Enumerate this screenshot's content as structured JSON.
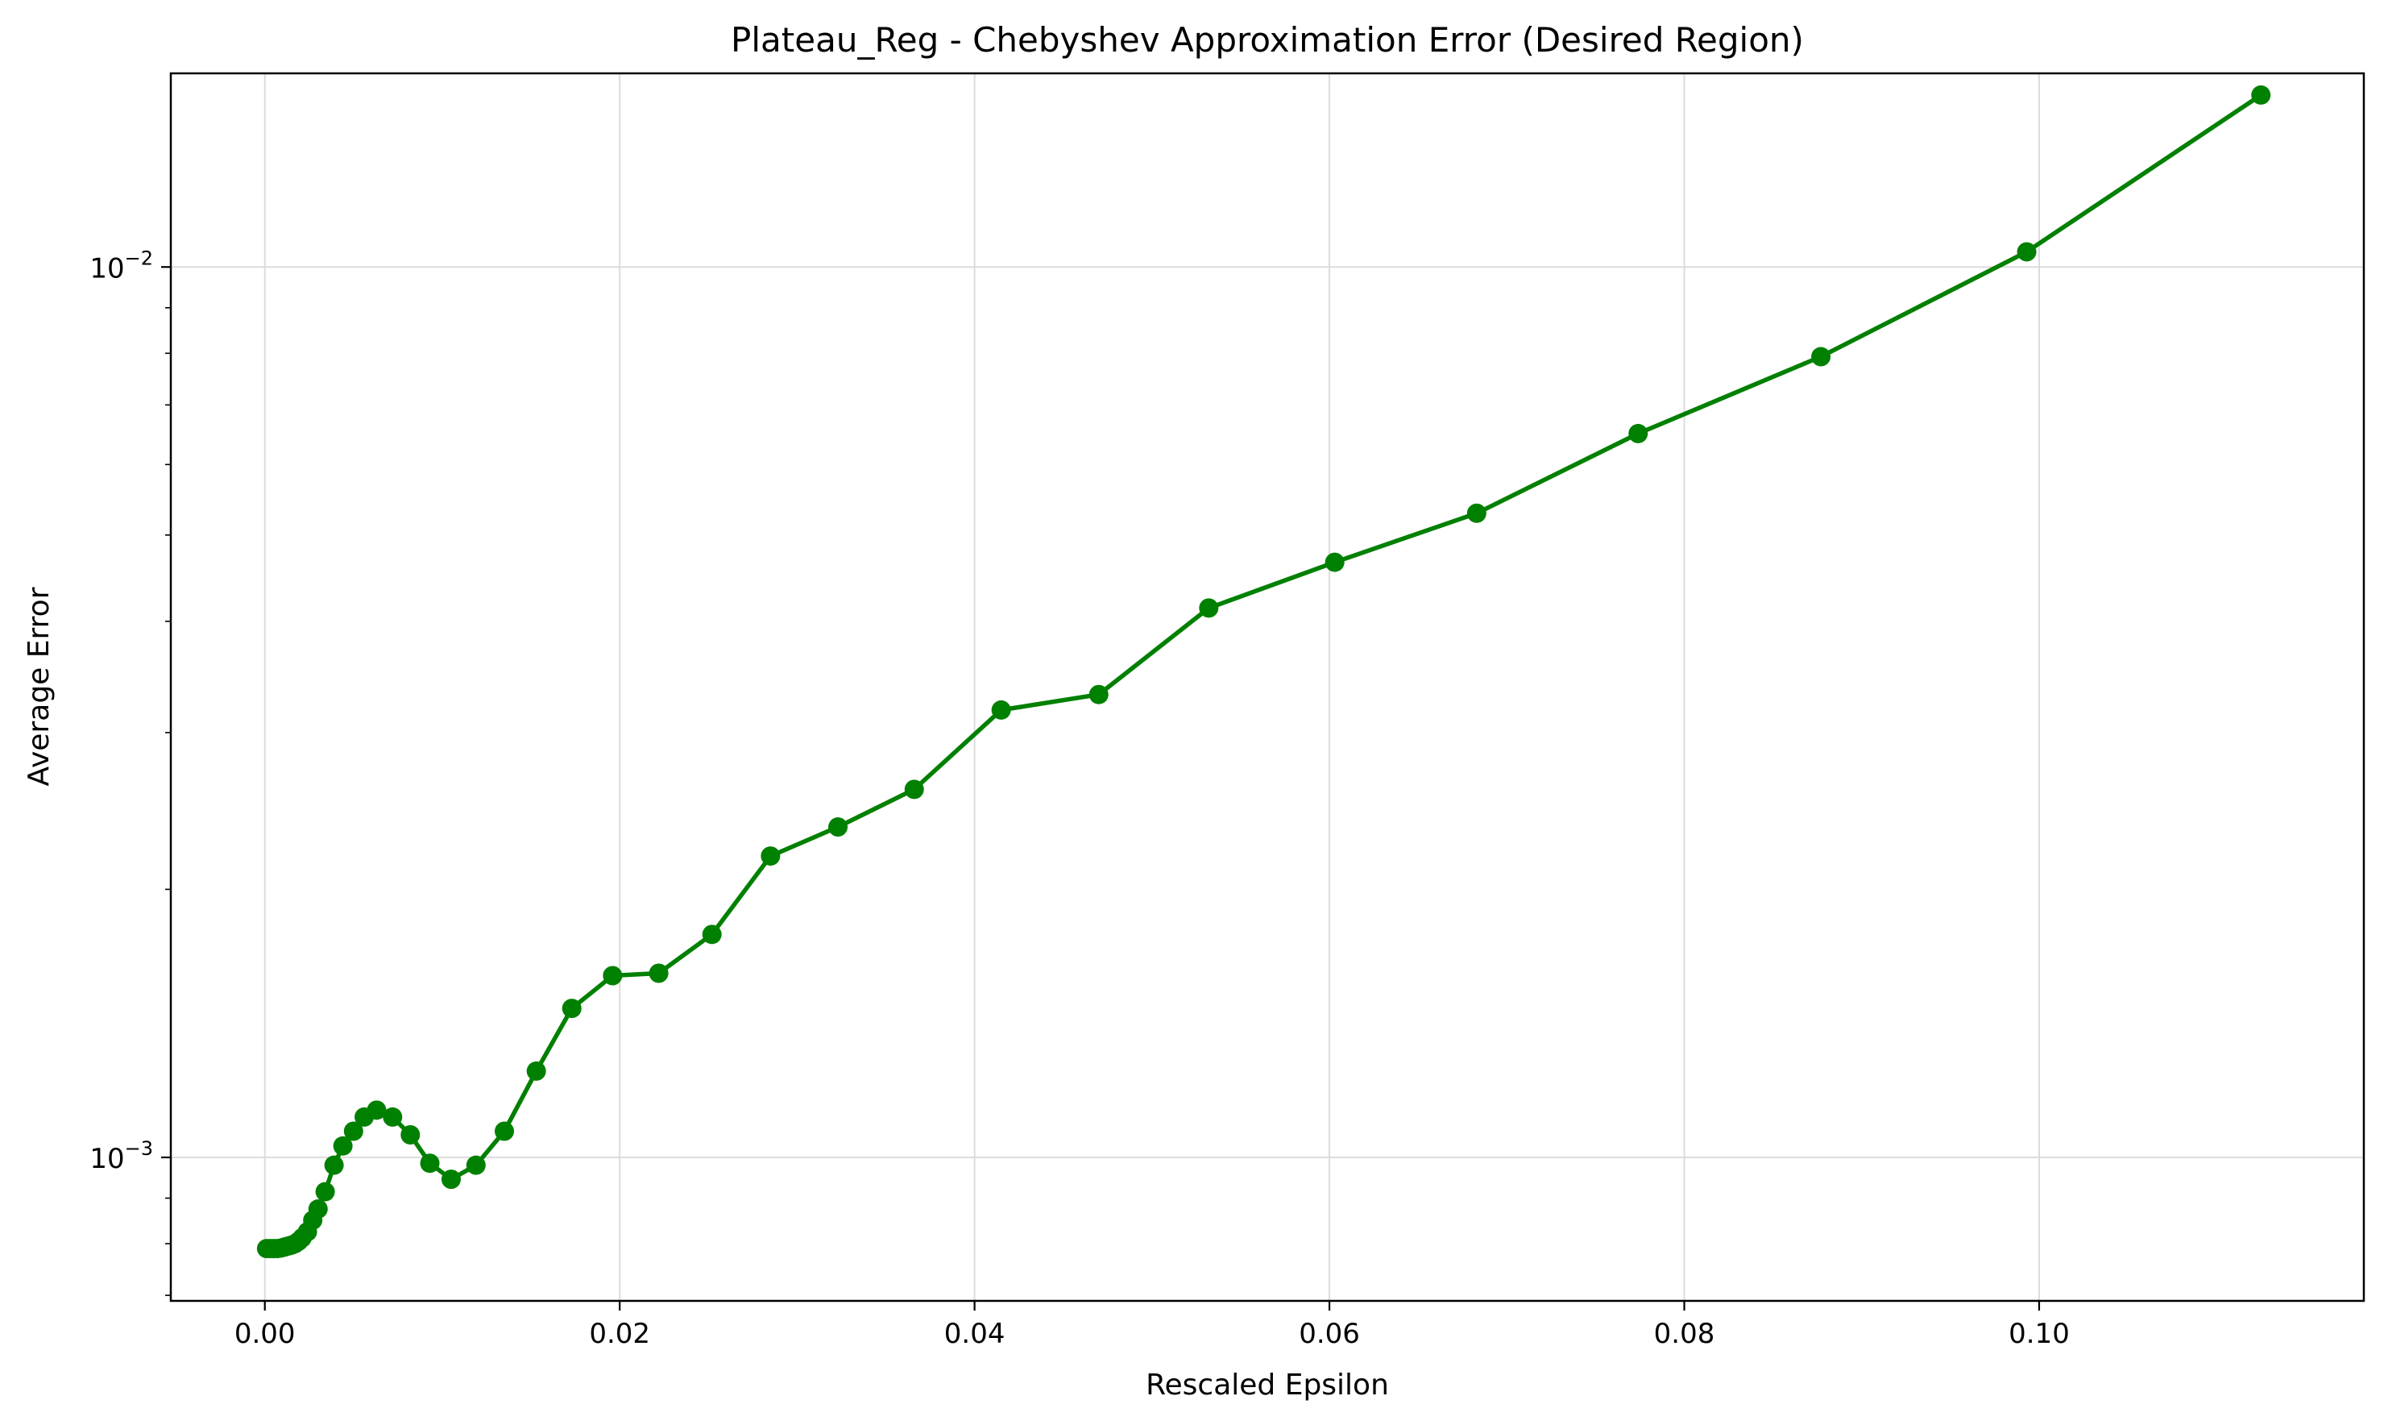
{
  "chart_data": {
    "type": "line",
    "title": "Plateau_Reg - Chebyshev Approximation Error (Desired Region)",
    "xlabel": "Rescaled Epsilon",
    "ylabel": "Average Error",
    "xscale": "linear",
    "yscale": "log",
    "xlim": [
      -0.0053,
      0.1183
    ],
    "ylim": [
      0.00069,
      0.0165
    ],
    "grid": true,
    "x_ticks": [
      {
        "value": 0.0,
        "label": "0.00"
      },
      {
        "value": 0.02,
        "label": "0.02"
      },
      {
        "value": 0.04,
        "label": "0.04"
      },
      {
        "value": 0.06,
        "label": "0.06"
      },
      {
        "value": 0.08,
        "label": "0.08"
      },
      {
        "value": 0.1,
        "label": "0.10"
      }
    ],
    "y_ticks": [
      {
        "value": 0.001,
        "base": "10",
        "exponent": "−3"
      },
      {
        "value": 0.01,
        "base": "10",
        "exponent": "−2"
      }
    ],
    "series": [
      {
        "color": "#008000",
        "marker": "circle",
        "x": [
          0.0001,
          0.0003,
          0.0005,
          0.0007,
          0.0009,
          0.0011,
          0.0013,
          0.0015,
          0.0017,
          0.0019,
          0.0021,
          0.0024,
          0.0027,
          0.003,
          0.0034,
          0.0039,
          0.0044,
          0.005,
          0.0056,
          0.0063,
          0.0072,
          0.0082,
          0.0093,
          0.0105,
          0.0119,
          0.0135,
          0.0153,
          0.0173,
          0.0196,
          0.0222,
          0.0252,
          0.0285,
          0.0323,
          0.0366,
          0.0415,
          0.047,
          0.0532,
          0.0603,
          0.0683,
          0.0774,
          0.0877,
          0.0993,
          0.1125
        ],
        "y": [
          0.00079,
          0.00079,
          0.00079,
          0.00079,
          0.000791,
          0.000793,
          0.000795,
          0.000797,
          0.0008,
          0.000805,
          0.000812,
          0.000825,
          0.00085,
          0.000875,
          0.000915,
          0.00098,
          0.00103,
          0.00107,
          0.00111,
          0.00113,
          0.00111,
          0.00106,
          0.000985,
          0.000945,
          0.00098,
          0.00107,
          0.00125,
          0.00147,
          0.0016,
          0.00161,
          0.00178,
          0.00218,
          0.00235,
          0.00259,
          0.00318,
          0.00331,
          0.00414,
          0.00466,
          0.00529,
          0.0065,
          0.00793,
          0.0104,
          0.0156
        ]
      }
    ]
  }
}
